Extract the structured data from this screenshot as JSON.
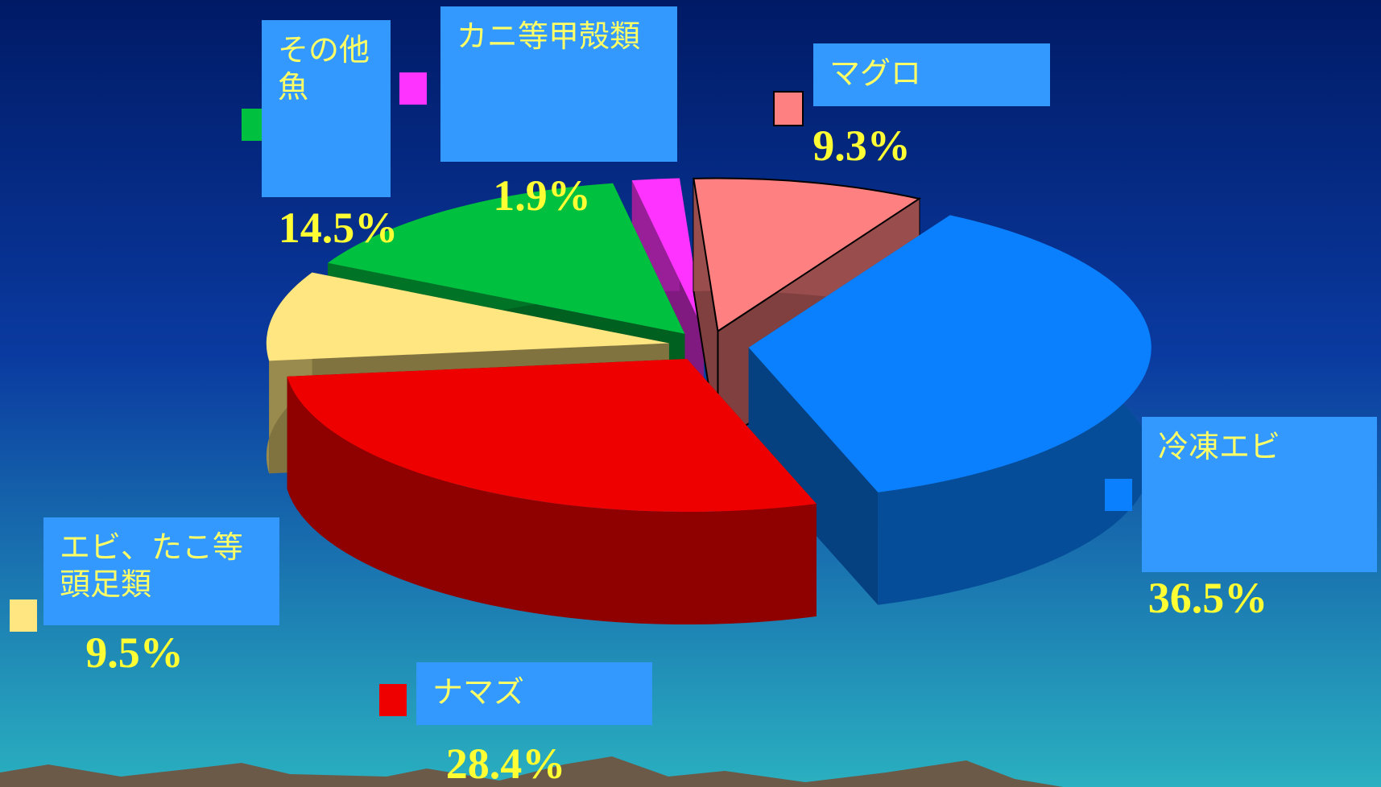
{
  "chart_data": {
    "type": "pie3d",
    "categories": [
      "冷凍エビ",
      "ナマズ",
      "エビ、たこ等頭足類",
      "その他魚",
      "カニ等甲殻類",
      "マグロ"
    ],
    "values": [
      36.5,
      28.4,
      9.5,
      14.5,
      1.9,
      9.3
    ],
    "value_labels": [
      "36.5%",
      "28.4%",
      "9.5%",
      "14.5%",
      "1.9%",
      "9.3%"
    ],
    "colors": [
      "#0a80ff",
      "#ee0000",
      "#ffe680",
      "#00c040",
      "#ff33ff",
      "#ff8080"
    ]
  }
}
